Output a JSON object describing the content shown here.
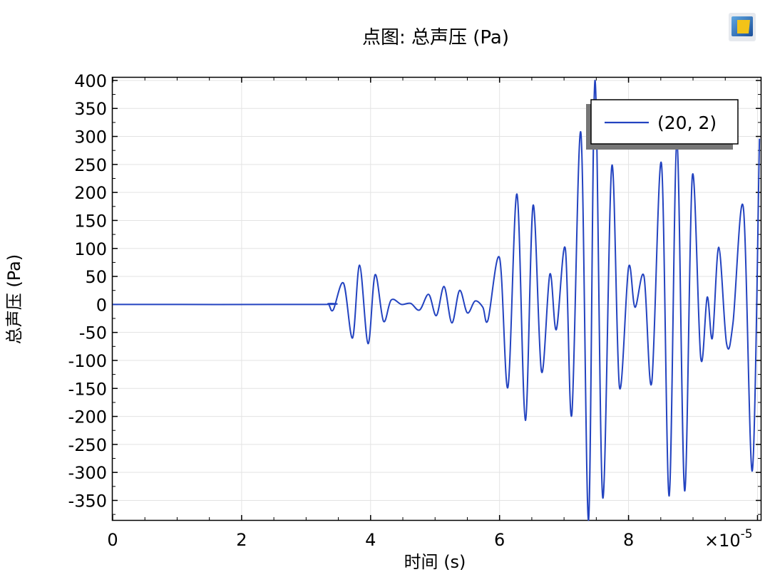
{
  "chart_data": {
    "type": "line",
    "title": "点图: 总声压 (Pa)",
    "xlabel": "时间 (s)",
    "ylabel": "总声压 (Pa)",
    "x_multiplier_label": "×10",
    "x_multiplier_exponent": "-5",
    "xlim": [
      0,
      10.05
    ],
    "ylim": [
      -385,
      405
    ],
    "xticks": [
      0,
      2,
      4,
      6,
      8
    ],
    "xtick_labels": [
      "0",
      "2",
      "4",
      "6",
      "8"
    ],
    "yticks": [
      400,
      350,
      300,
      250,
      200,
      150,
      100,
      50,
      0,
      -50,
      -100,
      -150,
      -200,
      -250,
      -300,
      -350
    ],
    "ytick_labels": [
      "400",
      "350",
      "300",
      "250",
      "200",
      "150",
      "100",
      "50",
      "0",
      "-50",
      "-100",
      "-150",
      "-200",
      "-250",
      "-300",
      "-350"
    ],
    "grid": true,
    "legend_position": "top-right",
    "series": [
      {
        "name": "(20, 2)",
        "color": "#2343c0",
        "points": [
          [
            0,
            0
          ],
          [
            3.2,
            0
          ],
          [
            3.34,
            1
          ],
          [
            3.42,
            -10
          ],
          [
            3.58,
            38
          ],
          [
            3.72,
            -60
          ],
          [
            3.83,
            70
          ],
          [
            3.96,
            -70
          ],
          [
            4.07,
            53
          ],
          [
            4.2,
            -30
          ],
          [
            4.32,
            8
          ],
          [
            4.48,
            0
          ],
          [
            4.62,
            2
          ],
          [
            4.76,
            -10
          ],
          [
            4.9,
            18
          ],
          [
            5.02,
            -20
          ],
          [
            5.14,
            32
          ],
          [
            5.26,
            -33
          ],
          [
            5.38,
            25
          ],
          [
            5.5,
            -15
          ],
          [
            5.62,
            6
          ],
          [
            5.74,
            -5
          ],
          [
            5.82,
            -28
          ],
          [
            6.0,
            83
          ],
          [
            6.13,
            -148
          ],
          [
            6.27,
            197
          ],
          [
            6.4,
            -207
          ],
          [
            6.52,
            177
          ],
          [
            6.65,
            -120
          ],
          [
            6.78,
            54
          ],
          [
            6.88,
            -45
          ],
          [
            7.02,
            100
          ],
          [
            7.12,
            -197
          ],
          [
            7.26,
            307
          ],
          [
            7.38,
            -385
          ],
          [
            7.48,
            400
          ],
          [
            7.6,
            -345
          ],
          [
            7.74,
            247
          ],
          [
            7.86,
            -148
          ],
          [
            8.0,
            66
          ],
          [
            8.1,
            -5
          ],
          [
            8.24,
            50
          ],
          [
            8.36,
            -140
          ],
          [
            8.51,
            252
          ],
          [
            8.63,
            -342
          ],
          [
            8.75,
            290
          ],
          [
            8.87,
            -333
          ],
          [
            8.99,
            230
          ],
          [
            9.12,
            -96
          ],
          [
            9.22,
            13
          ],
          [
            9.3,
            -60
          ],
          [
            9.4,
            102
          ],
          [
            9.52,
            -70
          ],
          [
            9.62,
            -33
          ],
          [
            9.78,
            173
          ],
          [
            9.92,
            -297
          ],
          [
            10.03,
            296
          ]
        ]
      }
    ]
  },
  "icons": {
    "logo": "app-window-logo-icon"
  }
}
